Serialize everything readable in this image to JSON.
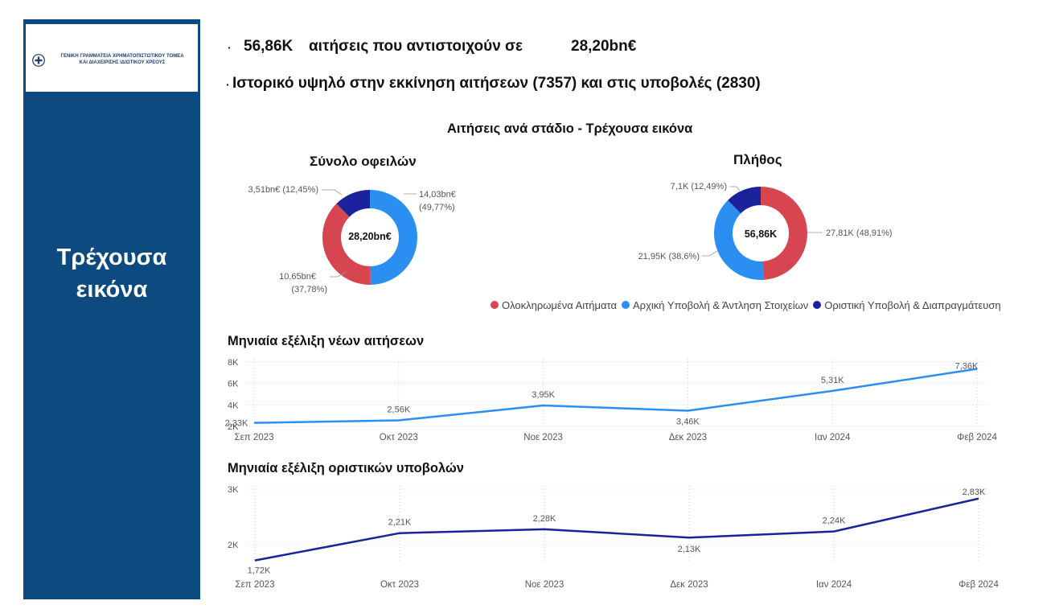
{
  "sidebar": {
    "logo_text_line1": "ΓΕΝΙΚΗ ΓΡΑΜΜΑΤΕΙΑ ΧΡΗΜΑΤΟΠΙΣΤΩΤΙΚΟΥ ΤΟΜΕΑ",
    "logo_text_line2": "ΚΑΙ ΔΙΑΧΕΙΡΙΣΗΣ ΙΔΙΩΤΙΚΟΥ ΧΡΕΟΥΣ",
    "title_line1": "Τρέχουσα",
    "title_line2": "εικόνα",
    "color": "#0c4a80"
  },
  "headlines": {
    "bullet": "·",
    "line1_value": "56,86K",
    "line1_text": "αιτήσεις που αντιστοιχούν σε",
    "line1_amount": "28,20bn€",
    "line2_text": "Ιστορικό υψηλό στην εκκίνηση αιτήσεων (7357) και στις υποβολές (2830)"
  },
  "colors": {
    "completed": "#d64550",
    "initial": "#2a8ff0",
    "final": "#1a239c",
    "line1": "#2a8ff0",
    "line2": "#1a239c"
  },
  "chart_data": [
    {
      "type": "pie",
      "title": "Αιτήσεις ανά στάδιο - Τρέχουσα εικόνα",
      "legend_placement": "bottom",
      "legend": [
        "Ολοκληρωμένα Αιτήματα",
        "Αρχική Υποβολή & Άντληση Στοιχείων",
        "Οριστική Υποβολή & Διαπραγμάτευση"
      ]
    },
    {
      "type": "pie",
      "title": "Σύνολο οφειλών",
      "center_label": "28,20bn€",
      "slices": [
        {
          "category": "Ολοκληρωμένα Αιτήματα",
          "value": 10.65,
          "percent": 37.78,
          "label_value": "10,65bn€",
          "label_percent": "(37,78%)"
        },
        {
          "category": "Αρχική Υποβολή & Άντληση Στοιχείων",
          "value": 14.03,
          "percent": 49.77,
          "label_value": "14,03bn€",
          "label_percent": "(49,77%)"
        },
        {
          "category": "Οριστική Υποβολή & Διαπραγμάτευση",
          "value": 3.51,
          "percent": 12.45,
          "label_value": "3,51bn€",
          "label_percent": "(12,45%)"
        }
      ]
    },
    {
      "type": "pie",
      "title": "Πλήθος",
      "center_label": "56,86K",
      "slices": [
        {
          "category": "Ολοκληρωμένα Αιτήματα",
          "value": 27.81,
          "percent": 48.91,
          "label": "27,81K (48,91%)"
        },
        {
          "category": "Αρχική Υποβολή & Άντληση Στοιχείων",
          "value": 21.95,
          "percent": 38.6,
          "label": "21,95K (38,6%)"
        },
        {
          "category": "Οριστική Υποβολή & Διαπραγμάτευση",
          "value": 7.1,
          "percent": 12.49,
          "label": "7,1K (12,49%)"
        }
      ]
    },
    {
      "type": "line",
      "title": "Μηνιαία εξέλιξη νέων αιτήσεων",
      "x": [
        "Σεπ 2023",
        "Οκτ 2023",
        "Νοε 2023",
        "Δεκ 2023",
        "Ιαν 2024",
        "Φεβ 2024"
      ],
      "y": [
        2330,
        2560,
        3950,
        3460,
        5310,
        7360
      ],
      "data_labels": [
        "2,33K",
        "2,56K",
        "3,95K",
        "3,46K",
        "5,31K",
        "7,36K"
      ],
      "y_ticks": [
        2000,
        4000,
        6000,
        8000
      ],
      "y_tick_labels": [
        "2K",
        "4K",
        "6K",
        "8K"
      ],
      "ylim": [
        2000,
        8000
      ],
      "grid": true
    },
    {
      "type": "line",
      "title": "Μηνιαία εξέλιξη οριστικών υποβολών",
      "x": [
        "Σεπ 2023",
        "Οκτ 2023",
        "Νοε 2023",
        "Δεκ 2023",
        "Ιαν 2024",
        "Φεβ 2024"
      ],
      "y": [
        1720,
        2210,
        2280,
        2130,
        2240,
        2830
      ],
      "data_labels": [
        "1,72K",
        "2,21K",
        "2,28K",
        "2,13K",
        "2,24K",
        "2,83K"
      ],
      "y_ticks": [
        2000,
        3000
      ],
      "y_tick_labels": [
        "2K",
        "3K"
      ],
      "ylim": [
        1700,
        3000
      ],
      "grid": true
    }
  ]
}
